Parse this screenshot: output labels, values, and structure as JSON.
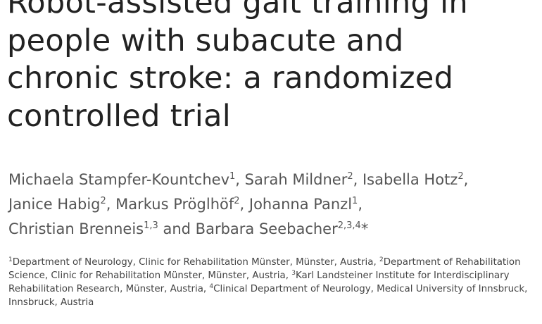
{
  "title_lines": [
    "Robot-assisted gait training in",
    "people with subacute and",
    "chronic stroke: a randomized",
    "controlled trial"
  ],
  "author_lines": [
    [
      {
        "name": "Michaela Stampfer-Kountchev",
        "affil": "1",
        "sep": ", "
      },
      {
        "name": "Sarah Mildner",
        "affil": "2",
        "sep": ", "
      },
      {
        "name": "Isabella Hotz",
        "affil": "2",
        "sep": ","
      }
    ],
    [
      {
        "name": "Janice Habig",
        "affil": "2",
        "sep": ", "
      },
      {
        "name": "Markus Pröglhöf",
        "affil": "2",
        "sep": ", "
      },
      {
        "name": "Johanna Panzl",
        "affil": "1",
        "sep": ","
      }
    ],
    [
      {
        "name": "Christian Brenneis",
        "affil": "1,3",
        "sep": " and "
      },
      {
        "name": "Barbara Seebacher",
        "affil": "2,3,4",
        "sep": "*"
      }
    ]
  ],
  "affiliations": [
    {
      "sup": "1",
      "text": "Department of Neurology, Clinic for Rehabilitation Münster, Münster, Austria, "
    },
    {
      "sup": "2",
      "text": "Department of Rehabilitation Science, Clinic for Rehabilitation Münster, Münster, Austria, "
    },
    {
      "sup": "3",
      "text": "Karl Landsteiner Institute for Interdisciplinary Rehabilitation Research, Münster, Austria, "
    },
    {
      "sup": "4",
      "text": "Clinical Department of Neurology, Medical University of Innsbruck, Innsbruck, Austria"
    }
  ]
}
